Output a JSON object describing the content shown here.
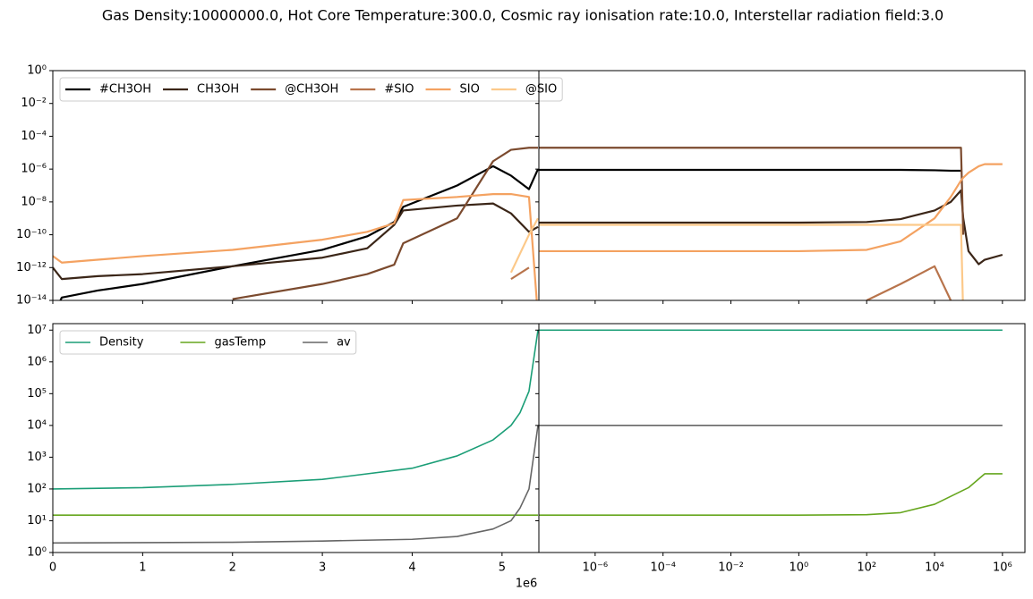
{
  "title": "Gas Density:10000000.0, Hot Core Temperature:300.0, Cosmic ray ionisation rate:10.0, Interstellar radiation field:3.0",
  "chart_data": [
    {
      "type": "line",
      "xscale": "linear",
      "yscale": "log",
      "legend": "upper left",
      "xlim": [
        0,
        5410000
      ],
      "ylim": [
        1e-14,
        1
      ],
      "xticks": [
        0,
        1000000,
        2000000,
        3000000,
        4000000,
        5000000
      ],
      "yticks": [
        {
          "value": 1e-14,
          "label": "10⁻¹⁴"
        },
        {
          "value": 1e-12,
          "label": "10⁻¹²"
        },
        {
          "value": 1e-10,
          "label": "10⁻¹⁰"
        },
        {
          "value": 1e-08,
          "label": "10⁻⁸"
        },
        {
          "value": 1e-06,
          "label": "10⁻⁶"
        },
        {
          "value": 0.0001,
          "label": "10⁻⁴"
        },
        {
          "value": 0.01,
          "label": "10⁻²"
        },
        {
          "value": 1,
          "label": "10⁰"
        }
      ],
      "x": [
        0,
        100000,
        500000,
        1000000,
        2000000,
        3000000,
        3500000,
        3800000,
        3900000,
        4500000,
        4900000,
        5100000,
        5300000,
        5400000
      ],
      "series": [
        {
          "name": "#CH3OH",
          "color": "#000000",
          "values": [
            1e-15,
            1.5e-14,
            4e-14,
            1e-13,
            1.2e-12,
            1.2e-11,
            8e-11,
            6e-10,
            5e-09,
            1e-07,
            1.5e-06,
            4e-07,
            6e-08,
            1e-06
          ]
        },
        {
          "name": "CH3OH",
          "color": "#3b2618",
          "values": [
            1e-12,
            2e-13,
            3e-13,
            4e-13,
            1.2e-12,
            4e-12,
            1.5e-11,
            4e-10,
            3e-09,
            6e-09,
            8e-09,
            2e-09,
            1.5e-10,
            3e-10
          ]
        },
        {
          "name": "@CH3OH",
          "color": "#7b4a2e",
          "values": [
            null,
            null,
            null,
            null,
            1.2e-14,
            1e-13,
            4e-13,
            1.5e-12,
            3e-11,
            1e-09,
            3e-06,
            1.5e-05,
            2e-05,
            2e-05
          ]
        },
        {
          "name": "#SIO",
          "color": "#b8744c",
          "values": [
            null,
            null,
            null,
            null,
            null,
            null,
            null,
            null,
            null,
            null,
            null,
            2e-13,
            1e-12,
            null
          ]
        },
        {
          "name": "SIO",
          "color": "#f4a261",
          "values": [
            5e-12,
            2e-12,
            3e-12,
            5e-12,
            1.2e-11,
            5e-11,
            1.5e-10,
            5e-10,
            1.3e-08,
            2e-08,
            3e-08,
            3e-08,
            2e-08,
            1e-15
          ]
        },
        {
          "name": "@SIO",
          "color": "#fcc98a",
          "values": [
            null,
            null,
            null,
            null,
            null,
            null,
            null,
            null,
            null,
            null,
            null,
            5e-13,
            1e-10,
            1e-09
          ]
        }
      ]
    },
    {
      "type": "line",
      "xscale": "log",
      "yscale": "log",
      "xlim": [
        2.2e-08,
        4600000
      ],
      "ylim": [
        1e-14,
        1
      ],
      "xticks": [
        1e-06,
        0.0001,
        0.01,
        1,
        100,
        10000,
        1000000
      ],
      "yticks": [
        1e-14,
        1e-12,
        1e-10,
        1e-08,
        1e-06,
        0.0001,
        0.01,
        1
      ],
      "x": [
        2.2e-08,
        1,
        100,
        1000,
        10000,
        30000,
        60000,
        70000,
        100000,
        200000,
        300000,
        1000000
      ],
      "series": [
        {
          "color": "#000000",
          "values": [
            9e-07,
            9e-07,
            9e-07,
            9e-07,
            8.5e-07,
            8e-07,
            8e-07,
            null,
            null,
            null,
            null,
            null
          ]
        },
        {
          "color": "#3b2618",
          "values": [
            5.5e-10,
            5.5e-10,
            6e-10,
            9e-10,
            3e-09,
            1e-08,
            5e-08,
            1e-09,
            1e-11,
            1.6e-12,
            3e-12,
            6e-12
          ]
        },
        {
          "color": "#7b4a2e",
          "values": [
            2e-05,
            2e-05,
            2e-05,
            2e-05,
            2e-05,
            2e-05,
            2e-05,
            1e-10,
            null,
            null,
            null,
            null
          ]
        },
        {
          "color": "#b8744c",
          "values": [
            null,
            null,
            1e-14,
            1e-13,
            1.2e-12,
            1e-14,
            null,
            null,
            null,
            null,
            null,
            null
          ]
        },
        {
          "color": "#f4a261",
          "values": [
            1e-11,
            1e-11,
            1.2e-11,
            4e-11,
            1e-09,
            2e-08,
            2e-07,
            3e-07,
            6e-07,
            1.5e-06,
            2e-06,
            2e-06
          ]
        },
        {
          "color": "#fcc98a",
          "values": [
            4e-10,
            4e-10,
            4e-10,
            4e-10,
            4e-10,
            4e-10,
            4e-10,
            1e-15,
            null,
            null,
            null,
            null
          ]
        }
      ]
    },
    {
      "type": "line",
      "xscale": "linear",
      "yscale": "log",
      "legend": "upper left",
      "x_offset_label": "1e6",
      "xlim": [
        0,
        5410000
      ],
      "ylim": [
        1,
        16000000
      ],
      "xticks": [
        0,
        {
          "value": 1000000,
          "label": "1"
        },
        {
          "value": 2000000,
          "label": "2"
        },
        {
          "value": 3000000,
          "label": "3"
        },
        {
          "value": 4000000,
          "label": "4"
        },
        {
          "value": 5000000,
          "label": "5"
        }
      ],
      "yticks": [
        {
          "value": 1,
          "label": "10⁰"
        },
        {
          "value": 10,
          "label": "10¹"
        },
        {
          "value": 100,
          "label": "10²"
        },
        {
          "value": 1000,
          "label": "10³"
        },
        {
          "value": 10000,
          "label": "10⁴"
        },
        {
          "value": 100000,
          "label": "10⁵"
        },
        {
          "value": 1000000,
          "label": "10⁶"
        },
        {
          "value": 10000000,
          "label": "10⁷"
        }
      ],
      "x": [
        0,
        1000000,
        2000000,
        3000000,
        4000000,
        4500000,
        4900000,
        5100000,
        5200000,
        5300000,
        5400000
      ],
      "series": [
        {
          "name": "Density",
          "color": "#1b9e77",
          "values": [
            100,
            110,
            140,
            200,
            450,
            1100,
            3500,
            10000,
            25000,
            120000,
            10000000
          ]
        },
        {
          "name": "gasTemp",
          "color": "#66a61e",
          "values": [
            15,
            15,
            15,
            15,
            15,
            15,
            15,
            15,
            15,
            15,
            15
          ]
        },
        {
          "name": "av",
          "color": "#666666",
          "values": [
            2,
            2.05,
            2.1,
            2.3,
            2.6,
            3.2,
            5.5,
            10,
            25,
            100,
            10000
          ]
        }
      ]
    },
    {
      "type": "line",
      "xscale": "log",
      "yscale": "log",
      "xlim": [
        2.2e-08,
        4600000
      ],
      "ylim": [
        1,
        16000000
      ],
      "xticks": [
        {
          "value": 1e-06,
          "label": "10⁻⁶"
        },
        {
          "value": 0.0001,
          "label": "10⁻⁴"
        },
        {
          "value": 0.01,
          "label": "10⁻²"
        },
        {
          "value": 1,
          "label": "10⁰"
        },
        {
          "value": 100,
          "label": "10²"
        },
        {
          "value": 10000,
          "label": "10⁴"
        },
        {
          "value": 1000000,
          "label": "10⁶"
        }
      ],
      "yticks": [
        1,
        10,
        100,
        1000,
        10000,
        100000,
        1000000,
        10000000
      ],
      "x": [
        2.2e-08,
        1,
        100,
        1000,
        10000,
        100000,
        300000,
        1000000
      ],
      "series": [
        {
          "color": "#1b9e77",
          "values": [
            10000000,
            10000000,
            10000000,
            10000000,
            10000000,
            10000000,
            10000000,
            10000000
          ]
        },
        {
          "color": "#66a61e",
          "values": [
            15,
            15,
            15.5,
            18,
            33,
            110,
            300,
            300
          ]
        },
        {
          "color": "#666666",
          "values": [
            10000,
            10000,
            10000,
            10000,
            10000,
            10000,
            10000,
            10000
          ]
        }
      ]
    }
  ]
}
